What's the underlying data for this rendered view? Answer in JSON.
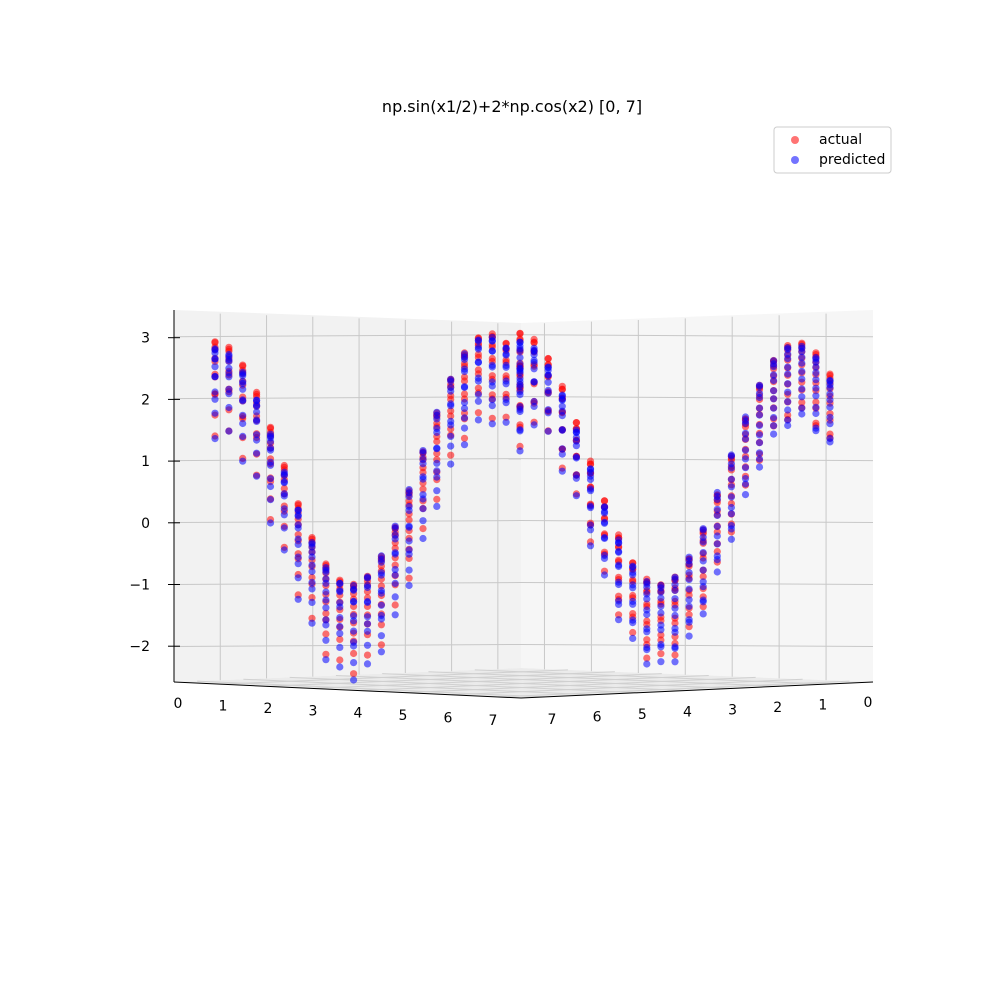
{
  "chart_data": {
    "type": "scatter",
    "projection": "3d",
    "title": "np.sin(x1/2)+2*np.cos(x2) [0, 7]",
    "function": "sin(x1/2)+2*cos(x2)",
    "x1_range": [
      0,
      7
    ],
    "x2_range": [
      0,
      7
    ],
    "grid": true,
    "legend_position": "top-right",
    "z_ticks": [
      "−2",
      "−1",
      "0",
      "1",
      "2",
      "3"
    ],
    "x1_ticks": [
      "0",
      "1",
      "2",
      "3",
      "4",
      "5",
      "6",
      "7"
    ],
    "x2_ticks": [
      "7",
      "6",
      "5",
      "4",
      "3",
      "2",
      "1",
      "0"
    ],
    "series": [
      {
        "name": "actual",
        "color": "#ff0000",
        "opacity": 0.55
      },
      {
        "name": "predicted",
        "color": "#0000ff",
        "opacity": 0.55
      }
    ]
  }
}
